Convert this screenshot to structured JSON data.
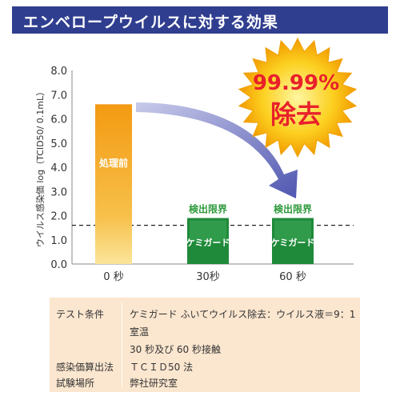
{
  "title": "エンベロープウイルスに対する効果",
  "burst": {
    "line1": "99.99%",
    "line2": "除去"
  },
  "chart_data": {
    "type": "bar",
    "categories": [
      "0 秒",
      "30秒",
      "60 秒"
    ],
    "values": [
      6.6,
      1.9,
      1.9
    ],
    "bar_labels": [
      "処理前",
      "ケミガード",
      "ケミガード"
    ],
    "above_labels": [
      "",
      "検出限界",
      "検出限界"
    ],
    "ylabel": "ウイルス感染価 log（TCID50/ 0.1mL）",
    "yticks": [
      "0.0",
      "1.0",
      "2.0",
      "3.0",
      "4.0",
      "5.0",
      "6.0",
      "7.0",
      "8.0"
    ],
    "ylim": [
      0,
      8
    ],
    "detection_limit": 1.6,
    "colors": {
      "before": "#f5a623",
      "after": "#1f8a3a",
      "arrow": "#5a63b8",
      "label_green": "#2e9a3c"
    }
  },
  "conditions": {
    "rows": [
      {
        "label": "テスト条件",
        "value": "ケミガード ふいてウイルス除去：ウイルス液＝9：1"
      },
      {
        "label": "",
        "value": "室温"
      },
      {
        "label": "",
        "value": "30 秒及び 60 秒接触"
      },
      {
        "label": "感染価算出法",
        "value": "ＴＣＩＤ50 法"
      },
      {
        "label": "試験場所",
        "value": "弊社研究室"
      }
    ]
  }
}
